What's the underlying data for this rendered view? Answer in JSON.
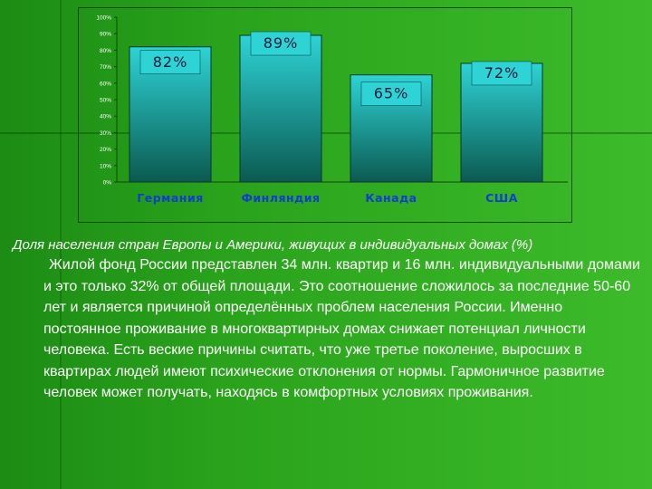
{
  "chart_data": {
    "type": "bar",
    "categories": [
      "Германия",
      "Финляндия",
      "Канада",
      "США"
    ],
    "values": [
      82,
      89,
      65,
      72
    ],
    "data_labels": [
      "82%",
      "89%",
      "65%",
      "72%"
    ],
    "ylim": [
      0,
      100
    ],
    "yticks": [
      "0%",
      "10%",
      "20%",
      "30%",
      "40%",
      "50%",
      "60%",
      "70%",
      "80%",
      "90%",
      "100%"
    ],
    "grid": false,
    "legend": "none",
    "colors": {
      "bar_top": "#2ed3d6",
      "bar_bottom": "#0b5a50",
      "category_label": "#0f3fd0",
      "axis": "#0a4a06"
    }
  },
  "caption": "Доля населения стран Европы и Америки, живущих в индивидуальных домах (%)",
  "paragraph": "Жилой фонд России представлен 34 млн. квартир и 16 млн. индивидуальными домами и это только 32% от общей площади. Это соотношение сложилось за последние 50-60 лет и является причиной определённых проблем населения России. Именно постоянное проживание  в многоквартирных домах снижает потенциал личности человека. Есть веские причины считать, что уже третье поколение, выросших в квартирах людей имеют психические отклонения от нормы. Гармоничное развитие человек может получать, находясь в комфортных условиях проживания."
}
